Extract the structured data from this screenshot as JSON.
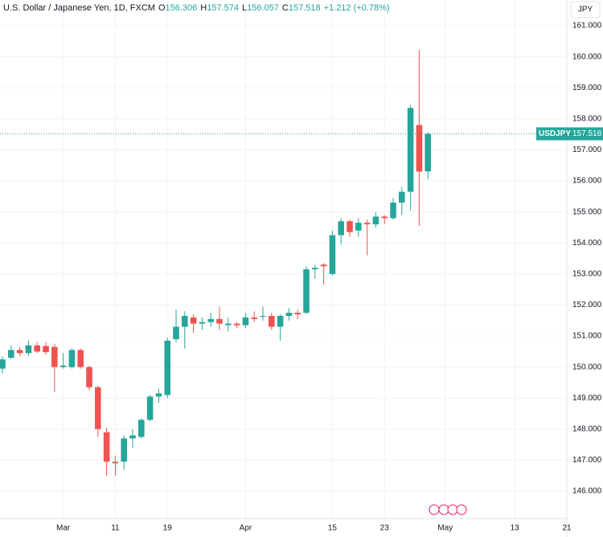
{
  "chart_data": {
    "type": "candlestick",
    "title": "U.S. Dollar / Japanese Yen, 1D, FXCM",
    "ohlc_legend": [
      {
        "key": "O",
        "value": "156.306"
      },
      {
        "key": "H",
        "value": "157.574"
      },
      {
        "key": "L",
        "value": "156.057"
      },
      {
        "key": "C",
        "value": "157.518"
      }
    ],
    "change": "+1.212 (+0.78%)",
    "currency": "JPY",
    "symbol": "USDJPY",
    "last_price": 157.518,
    "up_color": "#26a69a",
    "down_color": "#ef5350",
    "x": [
      0,
      1,
      2,
      3,
      4,
      5,
      6,
      7,
      8,
      9,
      10,
      11,
      12,
      13,
      14,
      15,
      16,
      17,
      18,
      19,
      20,
      21,
      22,
      23,
      24,
      25,
      26,
      27,
      28,
      29,
      30,
      31,
      32,
      33,
      34,
      35,
      36,
      37,
      38,
      39,
      40,
      41,
      42,
      43,
      44,
      45,
      46,
      47,
      48,
      49
    ],
    "open": [
      149.95,
      150.3,
      150.55,
      150.45,
      150.7,
      150.68,
      150.65,
      150.0,
      150.0,
      150.55,
      150.0,
      149.35,
      147.9,
      146.95,
      146.95,
      147.7,
      147.75,
      148.3,
      149.05,
      149.1,
      150.9,
      151.3,
      151.6,
      151.4,
      151.45,
      151.55,
      151.35,
      151.4,
      151.35,
      151.6,
      151.65,
      151.65,
      151.3,
      151.65,
      151.75,
      151.75,
      153.15,
      153.3,
      153.0,
      154.25,
      154.7,
      154.4,
      154.65,
      154.6,
      154.85,
      154.8,
      155.3,
      155.65,
      157.8,
      156.306
    ],
    "high": [
      150.35,
      150.7,
      150.65,
      150.85,
      150.8,
      150.8,
      150.75,
      150.45,
      150.6,
      150.6,
      150.05,
      149.4,
      148.05,
      147.15,
      147.8,
      148.0,
      148.35,
      149.1,
      149.3,
      150.95,
      151.85,
      151.8,
      151.7,
      151.6,
      151.75,
      151.95,
      151.6,
      151.45,
      151.75,
      151.8,
      151.95,
      151.75,
      151.7,
      151.9,
      151.85,
      153.25,
      153.3,
      153.35,
      154.4,
      154.8,
      154.75,
      154.8,
      154.75,
      155.0,
      154.9,
      155.45,
      155.8,
      158.45,
      160.22,
      157.574
    ],
    "low": [
      149.8,
      150.25,
      150.35,
      150.35,
      150.45,
      150.4,
      149.2,
      149.95,
      149.95,
      149.95,
      149.25,
      147.75,
      146.5,
      146.5,
      146.7,
      147.4,
      147.7,
      148.25,
      148.85,
      149.0,
      150.8,
      150.6,
      151.1,
      151.2,
      151.3,
      151.2,
      151.15,
      151.25,
      151.25,
      151.45,
      151.5,
      151.2,
      150.85,
      151.5,
      151.55,
      151.7,
      152.85,
      152.65,
      152.95,
      153.95,
      154.2,
      154.2,
      153.6,
      154.5,
      154.6,
      154.75,
      154.9,
      155.05,
      154.55,
      156.057
    ],
    "close": [
      150.25,
      150.55,
      150.45,
      150.7,
      150.5,
      150.48,
      150.0,
      150.05,
      150.55,
      150.0,
      149.35,
      148.0,
      146.95,
      146.9,
      147.7,
      147.8,
      148.3,
      149.05,
      149.15,
      150.85,
      151.3,
      151.65,
      151.4,
      151.45,
      151.55,
      151.4,
      151.4,
      151.35,
      151.6,
      151.55,
      151.65,
      151.3,
      151.65,
      151.75,
      151.7,
      153.15,
      153.2,
      153.25,
      154.25,
      154.7,
      154.35,
      154.65,
      154.6,
      154.85,
      154.8,
      155.3,
      155.65,
      158.35,
      156.3,
      157.518
    ],
    "xlim": [
      -0.28,
      65
    ],
    "xticks": [
      {
        "value": 7,
        "label": "Mar"
      },
      {
        "value": 13,
        "label": "11"
      },
      {
        "value": 19,
        "label": "19"
      },
      {
        "value": 28,
        "label": "Apr"
      },
      {
        "value": 38,
        "label": "15"
      },
      {
        "value": 44,
        "label": "23"
      },
      {
        "value": 51,
        "label": "May"
      },
      {
        "value": 59,
        "label": "13"
      },
      {
        "value": 65,
        "label": "21"
      }
    ],
    "ylim": [
      145.12,
      161.83
    ],
    "yticks": [
      {
        "value": 146,
        "label": "146.000"
      },
      {
        "value": 147,
        "label": "147.000"
      },
      {
        "value": 148,
        "label": "148.000"
      },
      {
        "value": 149,
        "label": "149.000"
      },
      {
        "value": 150,
        "label": "150.000"
      },
      {
        "value": 151,
        "label": "151.000"
      },
      {
        "value": 152,
        "label": "152.000"
      },
      {
        "value": 153,
        "label": "153.000"
      },
      {
        "value": 154,
        "label": "154.000"
      },
      {
        "value": 155,
        "label": "155.000"
      },
      {
        "value": 156,
        "label": "156.000"
      },
      {
        "value": 157,
        "label": "157.000"
      },
      {
        "value": 158,
        "label": "158.000"
      },
      {
        "value": 159,
        "label": "159.000"
      },
      {
        "value": 160,
        "label": "160.000"
      },
      {
        "value": 161,
        "label": "161.000"
      }
    ],
    "grid": true
  }
}
